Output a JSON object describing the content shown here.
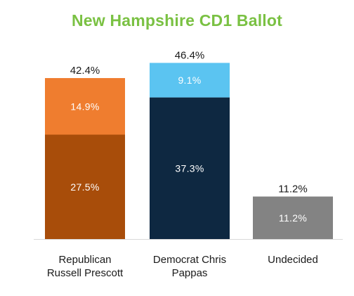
{
  "chart_data": {
    "type": "bar",
    "stacked": true,
    "title": "New Hampshire CD1 Ballot",
    "categories": [
      "Republican\nRussell Prescott",
      "Democrat Chris\nPappas",
      "Undecided"
    ],
    "series": [
      {
        "values": [
          27.5,
          37.3,
          11.2
        ],
        "labels": [
          "27.5%",
          "37.3%",
          "11.2%"
        ],
        "colors": [
          "#a84d0a",
          "#0e2841",
          "#838383"
        ]
      },
      {
        "values": [
          14.9,
          9.1,
          0
        ],
        "labels": [
          "14.9%",
          "9.1%",
          ""
        ],
        "colors": [
          "#ef7d2f",
          "#5bc4f1",
          "#838383"
        ]
      }
    ],
    "totals": [
      42.4,
      46.4,
      11.2
    ],
    "total_labels": [
      "42.4%",
      "46.4%",
      "11.2%"
    ],
    "ylim": [
      0,
      50
    ],
    "xlabel": "",
    "ylabel": "",
    "grid": false,
    "legend": "none",
    "baseline_color": "#d9d9d9",
    "title_color": "#7ac143"
  }
}
